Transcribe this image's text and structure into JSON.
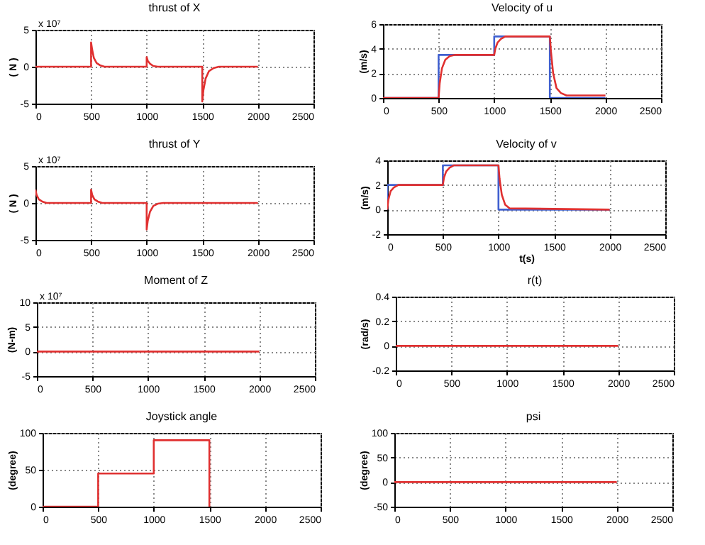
{
  "chart_data": [
    {
      "type": "line",
      "title": "thrust of X",
      "ylabel": "( N )",
      "annotations": [
        "x 10⁷"
      ],
      "xlim": [
        0,
        2500
      ],
      "xticks": [
        0,
        500,
        1000,
        1500,
        2000,
        2500
      ],
      "ylim": [
        -5,
        5
      ],
      "yticks": [
        -5,
        0,
        5
      ],
      "grid": true,
      "series": [
        {
          "color": "#e03030",
          "x": [
            0,
            500,
            500,
            510,
            525,
            550,
            580,
            620,
            1000,
            1000,
            1010,
            1030,
            1060,
            1100,
            1500,
            1500,
            1510,
            1530,
            1560,
            1600,
            1650,
            2000
          ],
          "values": [
            0,
            0,
            3.3,
            2.3,
            1.2,
            0.5,
            0.2,
            0,
            0,
            1.3,
            0.8,
            0.4,
            0.1,
            0,
            0,
            -4.7,
            -3.2,
            -1.6,
            -0.6,
            -0.2,
            0,
            0
          ]
        }
      ]
    },
    {
      "type": "line",
      "title": "Velocity of u",
      "ylabel": "(m/s)",
      "xlim": [
        0,
        2500
      ],
      "xticks": [
        0,
        500,
        1000,
        1500,
        2000,
        2500
      ],
      "ylim": [
        0,
        6
      ],
      "yticks": [
        0,
        2,
        4,
        6
      ],
      "grid": true,
      "series": [
        {
          "color": "#4060d0",
          "x": [
            0,
            500,
            500,
            1000,
            1000,
            1500,
            1500,
            2000
          ],
          "values": [
            0,
            0,
            3.5,
            3.5,
            5.0,
            5.0,
            0,
            0
          ]
        },
        {
          "color": "#e03030",
          "x": [
            0,
            500,
            510,
            530,
            560,
            600,
            650,
            1000,
            1010,
            1030,
            1060,
            1100,
            1150,
            1500,
            1510,
            1530,
            1560,
            1600,
            1650,
            2000
          ],
          "values": [
            0,
            0,
            1.2,
            2.4,
            3.1,
            3.4,
            3.5,
            3.5,
            4.0,
            4.5,
            4.8,
            5.0,
            5.0,
            5.0,
            3.8,
            2.0,
            0.8,
            0.4,
            0.2,
            0.2
          ]
        }
      ]
    },
    {
      "type": "line",
      "title": "thrust of Y",
      "ylabel": "( N )",
      "annotations": [
        "x 10⁷"
      ],
      "xlim": [
        0,
        2500
      ],
      "xticks": [
        0,
        500,
        1000,
        1500,
        2000,
        2500
      ],
      "ylim": [
        -5,
        5
      ],
      "yticks": [
        -5,
        0,
        5
      ],
      "grid": true,
      "series": [
        {
          "color": "#e03030",
          "x": [
            0,
            10,
            30,
            60,
            100,
            500,
            500,
            510,
            530,
            560,
            600,
            1000,
            1000,
            1010,
            1030,
            1060,
            1100,
            1150,
            2000
          ],
          "values": [
            1.8,
            1.1,
            0.5,
            0.2,
            0,
            0,
            1.8,
            1.1,
            0.5,
            0.2,
            0,
            0,
            -3.6,
            -2.4,
            -1.2,
            -0.4,
            -0.1,
            0,
            0
          ]
        }
      ]
    },
    {
      "type": "line",
      "title": "Velocity of v",
      "xlabel": "t(s)",
      "ylabel": "(m/s)",
      "xlim": [
        0,
        2500
      ],
      "xticks": [
        0,
        500,
        1000,
        1500,
        2000,
        2500
      ],
      "ylim": [
        -2,
        4
      ],
      "yticks": [
        -2,
        0,
        2,
        4
      ],
      "grid": true,
      "series": [
        {
          "color": "#4060d0",
          "x": [
            0,
            0,
            500,
            500,
            1000,
            1000,
            2000
          ],
          "values": [
            0,
            2,
            2,
            3.6,
            3.6,
            0,
            0
          ]
        },
        {
          "color": "#e03030",
          "x": [
            0,
            10,
            30,
            60,
            100,
            500,
            510,
            530,
            560,
            600,
            1000,
            1010,
            1030,
            1060,
            1100,
            2000
          ],
          "values": [
            0,
            0.8,
            1.5,
            1.8,
            2.0,
            2.0,
            2.6,
            3.1,
            3.4,
            3.6,
            3.6,
            2.5,
            1.2,
            0.4,
            0.1,
            0
          ]
        }
      ]
    },
    {
      "type": "line",
      "title": "Moment of Z",
      "ylabel": "(N-m)",
      "annotations": [
        "x 10⁷"
      ],
      "xlim": [
        0,
        2500
      ],
      "xticks": [
        0,
        500,
        1000,
        1500,
        2000,
        2500
      ],
      "ylim": [
        -5,
        10
      ],
      "yticks": [
        -5,
        0,
        5,
        10
      ],
      "grid": true,
      "series": [
        {
          "color": "#e03030",
          "x": [
            0,
            2000
          ],
          "values": [
            0,
            0
          ]
        }
      ]
    },
    {
      "type": "line",
      "title": "r(t)",
      "ylabel": "(rad/s)",
      "xlim": [
        0,
        2500
      ],
      "xticks": [
        0,
        500,
        1000,
        1500,
        2000,
        2500
      ],
      "ylim": [
        -0.2,
        0.4
      ],
      "yticks": [
        -0.2,
        0,
        0.2,
        0.4
      ],
      "grid": true,
      "series": [
        {
          "color": "#e03030",
          "x": [
            0,
            2000
          ],
          "values": [
            0,
            0
          ]
        }
      ]
    },
    {
      "type": "line",
      "title": "Joystick angle",
      "ylabel": "(degree)",
      "xlim": [
        0,
        2500
      ],
      "xticks": [
        0,
        500,
        1000,
        1500,
        2000,
        2500
      ],
      "ylim": [
        0,
        100
      ],
      "yticks": [
        0,
        50,
        100
      ],
      "grid": true,
      "series": [
        {
          "color": "#e03030",
          "x": [
            0,
            500,
            500,
            1000,
            1000,
            1500,
            1500
          ],
          "values": [
            0,
            0,
            45,
            45,
            90,
            90,
            0
          ]
        }
      ]
    },
    {
      "type": "line",
      "title": "psi",
      "ylabel": "(degree)",
      "xlim": [
        0,
        2500
      ],
      "xticks": [
        0,
        500,
        1000,
        1500,
        2000,
        2500
      ],
      "ylim": [
        -50,
        100
      ],
      "yticks": [
        -50,
        0,
        50,
        100
      ],
      "grid": true,
      "series": [
        {
          "color": "#e03030",
          "x": [
            0,
            2000
          ],
          "values": [
            0,
            0
          ]
        }
      ]
    }
  ]
}
